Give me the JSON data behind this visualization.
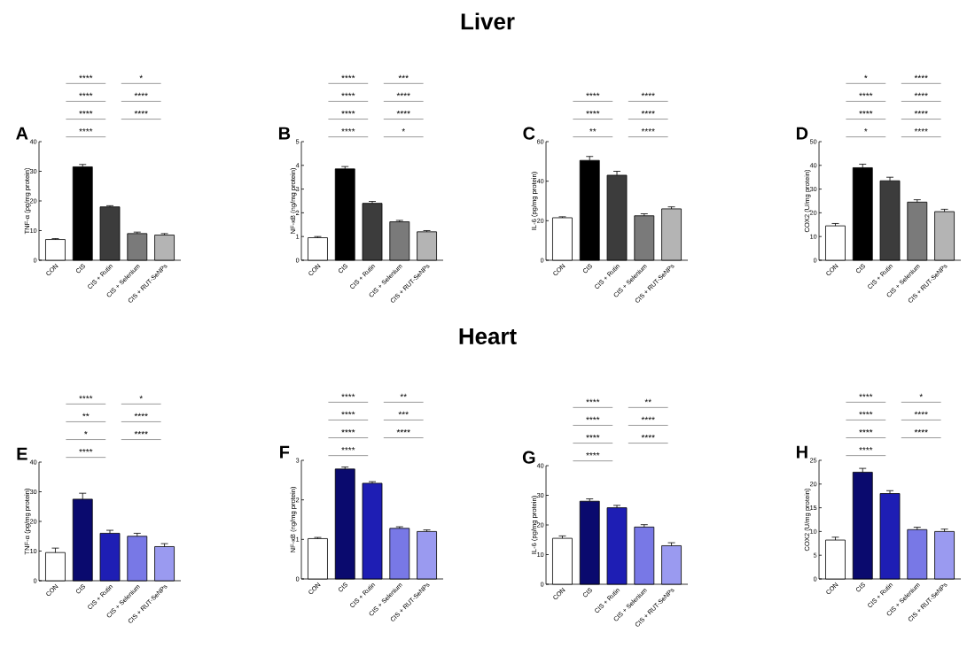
{
  "chart_data": [
    {
      "type": "other",
      "title": "Liver"
    },
    {
      "type": "bar",
      "title": "A",
      "ylabel": "TNF-α (pg/mg protein)",
      "categories": [
        "CON",
        "CIS",
        "CIS + Rutin",
        "CIS + Selenium",
        "CIS + RUT-SeNPs"
      ],
      "values": [
        7,
        31.5,
        18,
        9,
        8.5
      ],
      "errors": [
        0.3,
        0.8,
        0.4,
        0.5,
        0.5
      ],
      "colors": [
        "#ffffff",
        "#000000",
        "#3c3c3c",
        "#7a7a7a",
        "#b4b4b4"
      ],
      "ylim": [
        0,
        40
      ],
      "yticks": [
        0,
        10,
        20,
        30,
        40
      ],
      "annotations": [
        "****",
        "*",
        "****",
        "****",
        "****",
        "****",
        "****"
      ]
    },
    {
      "type": "bar",
      "title": "B",
      "ylabel": "NF-κB (ng/mg protein)",
      "categories": [
        "CON",
        "CIS",
        "CIS + Rutin",
        "CIS + Selenium",
        "CIS + RUT-SeNPs"
      ],
      "values": [
        0.95,
        3.85,
        2.4,
        1.62,
        1.2
      ],
      "errors": [
        0.05,
        0.1,
        0.08,
        0.06,
        0.05
      ],
      "colors": [
        "#ffffff",
        "#000000",
        "#3c3c3c",
        "#7a7a7a",
        "#b4b4b4"
      ],
      "ylim": [
        0,
        5
      ],
      "yticks": [
        0,
        1,
        2,
        3,
        4,
        5
      ],
      "annotations": [
        "****",
        "***",
        "****",
        "****",
        "****",
        "****",
        "****",
        "*"
      ]
    },
    {
      "type": "bar",
      "title": "C",
      "ylabel": "IL-6 (pg/mg protein)",
      "categories": [
        "CON",
        "CIS",
        "CIS + Rutin",
        "CIS + Selenium",
        "CIS + RUT-SeNPs"
      ],
      "values": [
        21.5,
        50.5,
        43,
        22.5,
        26
      ],
      "errors": [
        0.5,
        2,
        2,
        1,
        1
      ],
      "colors": [
        "#ffffff",
        "#000000",
        "#3c3c3c",
        "#7a7a7a",
        "#b4b4b4"
      ],
      "ylim": [
        0,
        60
      ],
      "yticks": [
        0,
        20,
        40,
        60
      ],
      "annotations": [
        "****",
        "****",
        "****",
        "****",
        "**",
        "****"
      ]
    },
    {
      "type": "bar",
      "title": "D",
      "ylabel": "COX2 (U/mg protein)",
      "categories": [
        "CON",
        "CIS",
        "CIS + Rutin",
        "CIS + Selenium",
        "CIS + RUT-SeNPs"
      ],
      "values": [
        14.5,
        39,
        33.5,
        24.5,
        20.5
      ],
      "errors": [
        1,
        1.5,
        1.5,
        1,
        1
      ],
      "colors": [
        "#ffffff",
        "#000000",
        "#3c3c3c",
        "#7a7a7a",
        "#b4b4b4"
      ],
      "ylim": [
        0,
        50
      ],
      "yticks": [
        0,
        10,
        20,
        30,
        40,
        50
      ],
      "annotations": [
        "*",
        "****",
        "****",
        "****",
        "****",
        "****",
        "*",
        "****"
      ]
    },
    {
      "type": "other",
      "title": "Heart"
    },
    {
      "type": "bar",
      "title": "E",
      "ylabel": "TNF-α (pg/mg protein)",
      "categories": [
        "CON",
        "CIS",
        "CIS + Rutin",
        "CIS + Selenium",
        "CIS + RUT-SeNPs"
      ],
      "values": [
        9.5,
        27.5,
        16,
        15,
        11.5
      ],
      "errors": [
        1.5,
        2,
        1,
        1,
        1
      ],
      "colors": [
        "#ffffff",
        "#0a0a6e",
        "#1e1eb4",
        "#7878e6",
        "#9a9af0"
      ],
      "ylim": [
        0,
        40
      ],
      "yticks": [
        0,
        10,
        20,
        30,
        40
      ],
      "annotations": [
        "****",
        "*",
        "**",
        "****",
        "*",
        "****",
        "****"
      ]
    },
    {
      "type": "bar",
      "title": "F",
      "ylabel": "NF-κB (ng/mg protein)",
      "categories": [
        "CON",
        "CIS",
        "CIS + Rutin",
        "CIS + Selenium",
        "CIS + RUT-SeNPs"
      ],
      "values": [
        1.02,
        2.78,
        2.42,
        1.28,
        1.2
      ],
      "errors": [
        0.03,
        0.05,
        0.04,
        0.04,
        0.04
      ],
      "colors": [
        "#ffffff",
        "#0a0a6e",
        "#1e1eb4",
        "#7878e6",
        "#9a9af0"
      ],
      "ylim": [
        0,
        3
      ],
      "yticks": [
        0,
        1,
        2,
        3
      ],
      "annotations": [
        "****",
        "**",
        "****",
        "***",
        "****",
        "****",
        "****"
      ]
    },
    {
      "type": "bar",
      "title": "G",
      "ylabel": "IL-6 (pg/mg protein)",
      "categories": [
        "CON",
        "CIS",
        "CIS + Rutin",
        "CIS + Selenium",
        "CIS + RUT-SeNPs"
      ],
      "values": [
        15.5,
        28,
        25.8,
        19.3,
        13
      ],
      "errors": [
        0.8,
        0.8,
        0.8,
        0.8,
        1
      ],
      "colors": [
        "#ffffff",
        "#0a0a6e",
        "#1e1eb4",
        "#7878e6",
        "#9a9af0"
      ],
      "ylim": [
        0,
        40
      ],
      "yticks": [
        0,
        10,
        20,
        30,
        40
      ],
      "annotations": [
        "****",
        "**",
        "****",
        "****",
        "****",
        "****",
        "****"
      ]
    },
    {
      "type": "bar",
      "title": "H",
      "ylabel": "COX2 (U/mg protein)",
      "categories": [
        "CON",
        "CIS",
        "CIS + Rutin",
        "CIS + Selenium",
        "CIS + RUT-SeNPs"
      ],
      "values": [
        8.2,
        22.5,
        18,
        10.4,
        10
      ],
      "errors": [
        0.6,
        0.8,
        0.6,
        0.5,
        0.5
      ],
      "colors": [
        "#ffffff",
        "#0a0a6e",
        "#1e1eb4",
        "#7878e6",
        "#9a9af0"
      ],
      "ylim": [
        0,
        25
      ],
      "yticks": [
        0,
        5,
        10,
        15,
        20,
        25
      ],
      "annotations": [
        "****",
        "*",
        "****",
        "****",
        "****",
        "****",
        "****"
      ]
    }
  ]
}
